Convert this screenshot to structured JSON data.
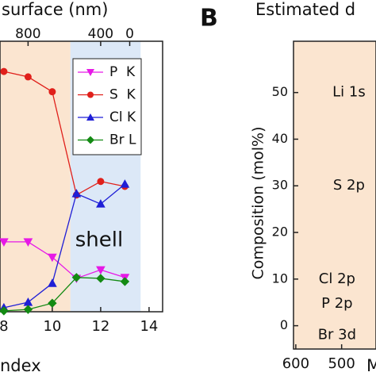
{
  "chart_data": [
    {
      "type": "line",
      "title": "surface (nm)",
      "x_label": "ndex",
      "xlim": [
        7.84,
        14.56
      ],
      "xticks": [
        8,
        10,
        12,
        14
      ],
      "ylim": [
        0,
        60
      ],
      "top_ticks": [
        {
          "value": 800,
          "index": 9
        },
        {
          "value": 400,
          "index": 12
        },
        {
          "value": 0,
          "index": 13.2
        }
      ],
      "regions": [
        {
          "from": 7.84,
          "to": 10.75,
          "color": "#fbe5d0"
        },
        {
          "label": "shell",
          "from": 10.75,
          "to": 13.65,
          "color": "#dce8f7"
        }
      ],
      "legend": "upper right",
      "x": [
        8,
        9,
        10,
        11,
        12,
        13
      ],
      "series": [
        {
          "name": "P  K",
          "color": "#e619e6",
          "marker": "triangle-down",
          "values": [
            15.5,
            15.5,
            12.1,
            7.4,
            9.3,
            7.6
          ]
        },
        {
          "name": "S  K",
          "color": "#e0201b",
          "marker": "circle",
          "values": [
            53.3,
            52.1,
            48.8,
            25.9,
            28.9,
            27.8
          ]
        },
        {
          "name": "Cl K",
          "color": "#1f1fd6",
          "marker": "triangle-up",
          "values": [
            0.9,
            2.1,
            6.3,
            26.2,
            23.9,
            28.3
          ]
        },
        {
          "name": "Br L",
          "color": "#138a13",
          "marker": "diamond",
          "values": [
            0.2,
            0.5,
            1.9,
            7.6,
            7.4,
            6.7
          ]
        }
      ]
    },
    {
      "type": "annotated",
      "panel_label": "B",
      "title": "Estimated d",
      "x_label": "M",
      "y_label": "Composition (mol%)",
      "xlim": [
        605,
        425
      ],
      "xticks": [
        600,
        500
      ],
      "ylim": [
        -5,
        61
      ],
      "yticks": [
        0,
        10,
        20,
        30,
        40,
        50
      ],
      "background": "#fbe5d0",
      "annotations": [
        {
          "text": "Li 1s",
          "x": 484,
          "y": 50,
          "color": "#111111"
        },
        {
          "text": "S 2p",
          "x": 484,
          "y": 30,
          "color": "#e0201b"
        },
        {
          "text": "Cl 2p",
          "x": 510,
          "y": 10,
          "color": "#1f1fd6"
        },
        {
          "text": "P 2p",
          "x": 510,
          "y": 4.7,
          "color": "#e619e6"
        },
        {
          "text": "Br 3d",
          "x": 510,
          "y": -2,
          "color": "#138a13"
        }
      ]
    }
  ]
}
